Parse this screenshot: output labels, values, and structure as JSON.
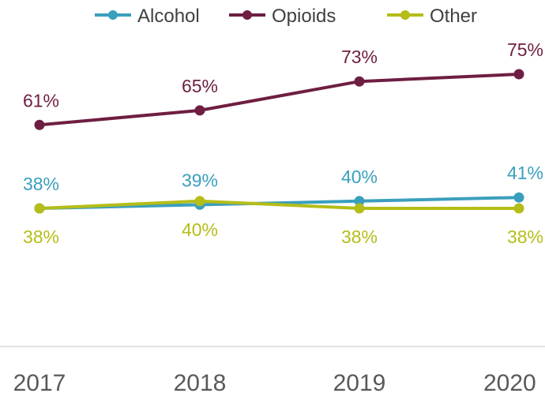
{
  "chart_data": {
    "type": "line",
    "title": "",
    "xlabel": "",
    "ylabel": "",
    "categories": [
      "2017",
      "2018",
      "2019",
      "2020"
    ],
    "ylim": [
      0,
      100
    ],
    "grid": false,
    "legend_position": "top",
    "series": [
      {
        "name": "Alcohol",
        "color": "#3a9fbd",
        "values": [
          38,
          39,
          40,
          41
        ],
        "labels": [
          "38%",
          "39%",
          "40%",
          "41%"
        ],
        "label_side": "above"
      },
      {
        "name": "Opioids",
        "color": "#6e1e42",
        "values": [
          61,
          65,
          73,
          75
        ],
        "labels": [
          "61%",
          "65%",
          "73%",
          "75%"
        ],
        "label_side": "above"
      },
      {
        "name": "Other",
        "color": "#b5bd18",
        "values": [
          38,
          40,
          38,
          38
        ],
        "labels": [
          "38%",
          "40%",
          "38%",
          "38%"
        ],
        "label_side": "below"
      }
    ]
  }
}
